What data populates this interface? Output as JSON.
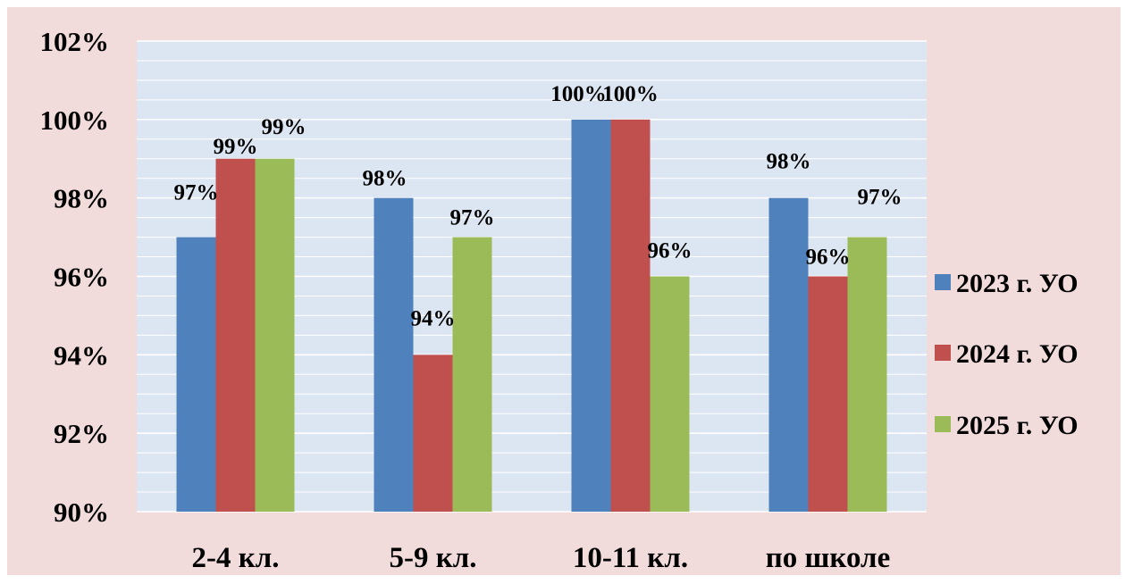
{
  "chart_data": {
    "type": "bar",
    "title": "",
    "xlabel": "",
    "ylabel": "",
    "categories": [
      "2-4 кл.",
      "5-9 кл.",
      "10-11 кл.",
      "по школе"
    ],
    "series": [
      {
        "name": "2023 г. УО",
        "color": "#4F81BD",
        "values": [
          97,
          98,
          100,
          98
        ],
        "labels": [
          "97%",
          "98%",
          "100%",
          "98%"
        ]
      },
      {
        "name": "2024 г. УО",
        "color": "#C0504D",
        "values": [
          99,
          94,
          100,
          96
        ],
        "labels": [
          "99%",
          "94%",
          "100%",
          "96%"
        ]
      },
      {
        "name": "2025 г. УО",
        "color": "#9BBB59",
        "values": [
          99,
          97,
          96,
          97
        ],
        "labels": [
          "99%",
          "97%",
          "96%",
          "97%"
        ]
      }
    ],
    "ylim": [
      90,
      102
    ],
    "yticks": [
      90,
      92,
      94,
      96,
      98,
      100,
      102
    ],
    "ytick_labels": [
      "90%",
      "92%",
      "94%",
      "96%",
      "98%",
      "100%",
      "102%"
    ],
    "grid": true,
    "legend_position": "right",
    "colors": {
      "outer_background": "#F2DCDB",
      "plot_background": "#DCE6F2",
      "gridline": "#FFFFFF"
    }
  }
}
